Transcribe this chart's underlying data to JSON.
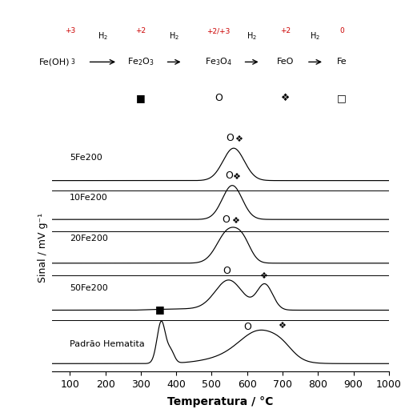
{
  "xlim": [
    50,
    1000
  ],
  "xlabel": "Temperatura / °C",
  "ylabel": "Sinal / mV g⁻¹",
  "xticks": [
    100,
    200,
    300,
    400,
    500,
    600,
    700,
    800,
    900,
    1000
  ],
  "background_color": "#ffffff",
  "line_color": "#000000",
  "red_color": "#cc0000",
  "series_labels": [
    "5Fe200",
    "10Fe200",
    "20Fe200",
    "50Fe200",
    "Padrão Hematita"
  ]
}
